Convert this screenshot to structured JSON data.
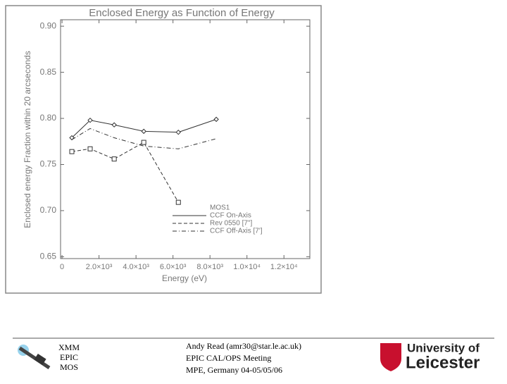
{
  "chart_data": {
    "type": "line",
    "title": "Enclosed Energy as Function of Energy",
    "x_label": "Energy (eV)",
    "y_label": "Enclosed energy Fraction within 20 arcseconds",
    "legend_title": "MOS1",
    "x": [
      530,
      1520,
      2820,
      4420,
      6290,
      8340
    ],
    "series": [
      {
        "name": "CCF On-Axis",
        "color": "#333333",
        "dash": "solid",
        "marker": "diamond",
        "values": [
          0.779,
          0.798,
          0.793,
          0.786,
          0.785,
          0.799
        ]
      },
      {
        "name": "Rev 0550 [7\"]",
        "color": "#333333",
        "dash": "dashed",
        "marker": "square",
        "values": [
          0.764,
          0.767,
          0.756,
          0.774,
          0.709,
          null
        ]
      },
      {
        "name": "CCF Off-Axis [7']",
        "color": "#333333",
        "dash": "dashdot",
        "marker": "none",
        "values": [
          0.777,
          0.789,
          0.779,
          0.77,
          0.767,
          0.778
        ]
      }
    ],
    "xlim": [
      -80,
      13400
    ],
    "ylim": [
      0.648,
      0.907
    ],
    "xticks": [
      0,
      {
        "value": 2000,
        "label": "2.0×10³"
      },
      {
        "value": 4000,
        "label": "4.0×10³"
      },
      {
        "value": 6000,
        "label": "6.0×10³"
      },
      {
        "value": 8000,
        "label": "8.0×10³"
      },
      {
        "value": 10000,
        "label": "1.0×10⁴"
      },
      {
        "value": 12000,
        "label": "1.2×10⁴"
      }
    ],
    "yticks": [
      {
        "value": 0.65,
        "label": "0.65"
      },
      {
        "value": 0.7,
        "label": "0.70"
      },
      {
        "value": 0.75,
        "label": "0.75"
      },
      {
        "value": 0.8,
        "label": "0.80"
      },
      {
        "value": 0.85,
        "label": "0.85"
      },
      {
        "value": 0.9,
        "label": "0.90"
      }
    ]
  },
  "footer": {
    "left_logo": [
      "XMM",
      "EPIC",
      "MOS"
    ],
    "center": [
      "Andy Read (amr30@star.le.ac.uk)",
      "EPIC CAL/OPS Meeting",
      "MPE, Germany 04-05/05/06"
    ],
    "right_logo": [
      "University of",
      "Leicester"
    ]
  }
}
